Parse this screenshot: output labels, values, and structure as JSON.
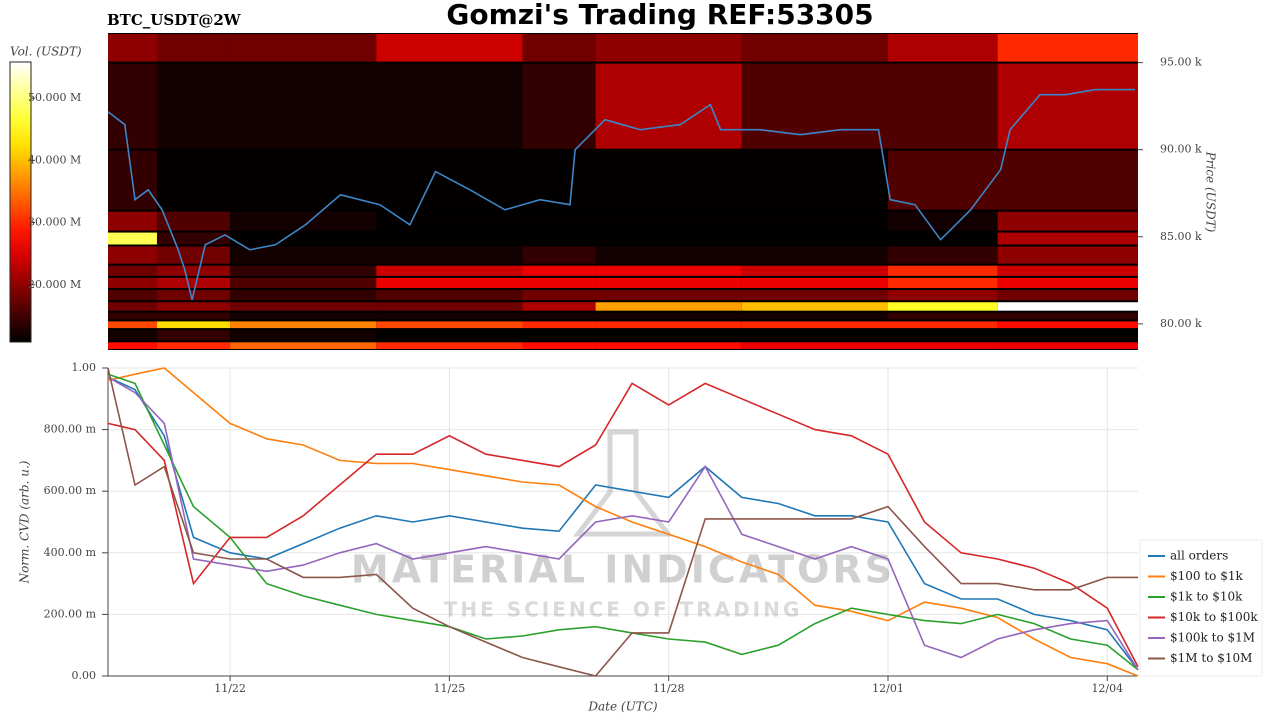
{
  "chart_data": [
    {
      "type": "heatmap",
      "title": "Gomzi's Trading REF:53305",
      "subtitle": "BTC_USDT@2W",
      "y_label": "Price (USDT)",
      "xlim": [
        0.33,
        14.42
      ],
      "ylim": [
        78500,
        96700
      ],
      "yticks": [
        {
          "value": 80000,
          "label": "80.00 k"
        },
        {
          "value": 85000,
          "label": "85.00 k"
        },
        {
          "value": 90000,
          "label": "90.00 k"
        },
        {
          "value": 95000,
          "label": "95.00 k"
        }
      ],
      "colormap": "hot",
      "colorbar": {
        "label": "Vol. (USDT)",
        "lim": [
          10800000,
          55800000
        ],
        "ticks": [
          {
            "value": 20000000,
            "label": "20.000 M"
          },
          {
            "value": 30000000,
            "label": "30.000 M"
          },
          {
            "value": 40000000,
            "label": "40.000 M"
          },
          {
            "value": 50000000,
            "label": "50.000 M"
          }
        ]
      },
      "x_bins": [
        0.33,
        1,
        2,
        4,
        6,
        7,
        9,
        11,
        12.5,
        14.42
      ],
      "y_bins": [
        78500,
        79000,
        79700,
        80200,
        80700,
        81300,
        82000,
        82700,
        83400,
        84500,
        85300,
        86500,
        90000,
        95000,
        96700
      ],
      "z": [
        [
          28000000,
          30000000,
          34000000,
          30000000,
          28000000,
          28000000,
          26000000,
          26000000,
          26000000
        ],
        [
          12000000,
          14000000,
          12000000,
          11000000,
          11000000,
          11000000,
          11000000,
          11000000,
          11000000
        ],
        [
          32000000,
          42000000,
          36000000,
          32000000,
          30000000,
          30000000,
          30000000,
          30000000,
          28000000
        ],
        [
          14000000,
          14000000,
          12000000,
          12000000,
          12000000,
          12000000,
          12000000,
          14000000,
          14000000
        ],
        [
          18000000,
          20000000,
          18000000,
          18000000,
          22000000,
          38000000,
          40000000,
          46000000,
          58000000
        ],
        [
          16000000,
          18000000,
          14000000,
          16000000,
          18000000,
          18000000,
          18000000,
          20000000,
          18000000
        ],
        [
          20000000,
          22000000,
          16000000,
          26000000,
          26000000,
          26000000,
          26000000,
          30000000,
          26000000
        ],
        [
          18000000,
          20000000,
          14000000,
          24000000,
          26000000,
          26000000,
          24000000,
          30000000,
          24000000
        ],
        [
          20000000,
          18000000,
          12000000,
          12000000,
          14000000,
          12000000,
          12000000,
          14000000,
          20000000
        ],
        [
          48000000,
          14000000,
          11000000,
          11000000,
          11000000,
          11000000,
          11000000,
          11000000,
          22000000
        ],
        [
          20000000,
          16000000,
          12000000,
          11000000,
          11000000,
          11000000,
          11000000,
          12000000,
          20000000
        ],
        [
          14000000,
          11000000,
          11000000,
          11000000,
          11000000,
          11000000,
          11000000,
          16000000,
          16000000
        ],
        [
          14000000,
          12000000,
          12000000,
          12000000,
          14000000,
          22000000,
          16000000,
          16000000,
          22000000
        ],
        [
          20000000,
          18000000,
          18000000,
          24000000,
          18000000,
          20000000,
          18000000,
          22000000,
          30000000
        ]
      ],
      "series": [
        {
          "color": "#3d85c6",
          "x": [
            0.33,
            0.56,
            0.7,
            0.88,
            1.07,
            1.29,
            1.38,
            1.48,
            1.66,
            1.93,
            2.27,
            2.62,
            3.03,
            3.51,
            4.05,
            4.46,
            4.81,
            5.28,
            5.76,
            6.24,
            6.65,
            6.72,
            7.13,
            7.61,
            8.16,
            8.57,
            8.71,
            9.25,
            9.8,
            10.35,
            10.87,
            11.03,
            11.37,
            11.72,
            12.13,
            12.54,
            12.67,
            13.08,
            13.43,
            13.84,
            14.38
          ],
          "values": [
            92180,
            91440,
            87130,
            87700,
            86550,
            84250,
            83100,
            81380,
            84540,
            85110,
            84250,
            84540,
            85690,
            87410,
            86840,
            85690,
            88740,
            87700,
            86550,
            87130,
            86840,
            90000,
            91720,
            91150,
            91440,
            92590,
            91150,
            91150,
            90860,
            91150,
            91150,
            87130,
            86840,
            84830,
            86550,
            88850,
            91150,
            93160,
            93160,
            93450,
            93450
          ]
        }
      ]
    },
    {
      "type": "line",
      "x_label": "Date (UTC)",
      "y_label": "Norm. CVD (arb. u.)",
      "grid": true,
      "legend": "right",
      "watermark": [
        "MATERIAL INDICATORS",
        "THE SCIENCE OF TRADING"
      ],
      "xlim": [
        0.33,
        14.42
      ],
      "ylim": [
        0,
        1
      ],
      "xticks": [
        {
          "value": 2,
          "label": "11/22"
        },
        {
          "value": 5,
          "label": "11/25"
        },
        {
          "value": 8,
          "label": "11/28"
        },
        {
          "value": 11,
          "label": "12/01"
        },
        {
          "value": 14,
          "label": "12/04"
        }
      ],
      "yticks": [
        {
          "value": 0,
          "label": "0.00"
        },
        {
          "value": 0.2,
          "label": "200.00 m"
        },
        {
          "value": 0.4,
          "label": "400.00 m"
        },
        {
          "value": 0.6,
          "label": "600.00 m"
        },
        {
          "value": 0.8,
          "label": "800.00 m"
        },
        {
          "value": 1,
          "label": "1.00"
        }
      ],
      "x": [
        0.33,
        0.7,
        1.1,
        1.5,
        2,
        2.5,
        3,
        3.5,
        4,
        4.5,
        5,
        5.5,
        6,
        6.5,
        7,
        7.5,
        8,
        8.5,
        9,
        9.5,
        10,
        10.5,
        11,
        11.5,
        12,
        12.5,
        13,
        13.5,
        14,
        14.42
      ],
      "series": [
        {
          "name": "all orders",
          "color": "#1f77b4",
          "values": [
            0.97,
            0.93,
            0.78,
            0.45,
            0.4,
            0.38,
            0.43,
            0.48,
            0.52,
            0.5,
            0.52,
            0.5,
            0.48,
            0.47,
            0.62,
            0.6,
            0.58,
            0.68,
            0.58,
            0.56,
            0.52,
            0.52,
            0.5,
            0.3,
            0.25,
            0.25,
            0.2,
            0.18,
            0.15,
            0.02
          ]
        },
        {
          "name": "$100 to $1k",
          "color": "#ff7f0e",
          "values": [
            0.96,
            0.98,
            1.0,
            0.92,
            0.82,
            0.77,
            0.75,
            0.7,
            0.69,
            0.69,
            0.67,
            0.65,
            0.63,
            0.62,
            0.55,
            0.5,
            0.46,
            0.42,
            0.37,
            0.33,
            0.23,
            0.21,
            0.18,
            0.24,
            0.22,
            0.19,
            0.12,
            0.06,
            0.04,
            0.0
          ]
        },
        {
          "name": "$1k to $10k",
          "color": "#2ca02c",
          "values": [
            0.98,
            0.95,
            0.75,
            0.55,
            0.45,
            0.3,
            0.26,
            0.23,
            0.2,
            0.18,
            0.16,
            0.12,
            0.13,
            0.15,
            0.16,
            0.14,
            0.12,
            0.11,
            0.07,
            0.1,
            0.17,
            0.22,
            0.2,
            0.18,
            0.17,
            0.2,
            0.17,
            0.12,
            0.1,
            0.02
          ]
        },
        {
          "name": "$10k to $100k",
          "color": "#d62728",
          "values": [
            0.82,
            0.8,
            0.7,
            0.3,
            0.45,
            0.45,
            0.52,
            0.62,
            0.72,
            0.72,
            0.78,
            0.72,
            0.7,
            0.68,
            0.75,
            0.95,
            0.88,
            0.95,
            0.9,
            0.85,
            0.8,
            0.78,
            0.72,
            0.5,
            0.4,
            0.38,
            0.35,
            0.3,
            0.22,
            0.03
          ]
        },
        {
          "name": "$100k to $1M",
          "color": "#9467bd",
          "values": [
            0.97,
            0.92,
            0.82,
            0.38,
            0.36,
            0.34,
            0.36,
            0.4,
            0.43,
            0.38,
            0.4,
            0.42,
            0.4,
            0.38,
            0.5,
            0.52,
            0.5,
            0.68,
            0.46,
            0.42,
            0.38,
            0.42,
            0.38,
            0.1,
            0.06,
            0.12,
            0.15,
            0.17,
            0.18,
            0.02
          ]
        },
        {
          "name": "$1M to $10M",
          "color": "#8c564b",
          "values": [
            1.0,
            0.62,
            0.68,
            0.4,
            0.38,
            0.38,
            0.32,
            0.32,
            0.33,
            0.22,
            0.16,
            0.11,
            0.06,
            0.03,
            0.0,
            0.14,
            0.14,
            0.51,
            0.51,
            0.51,
            0.51,
            0.51,
            0.55,
            0.42,
            0.3,
            0.3,
            0.28,
            0.28,
            0.32,
            0.32
          ]
        }
      ]
    }
  ]
}
